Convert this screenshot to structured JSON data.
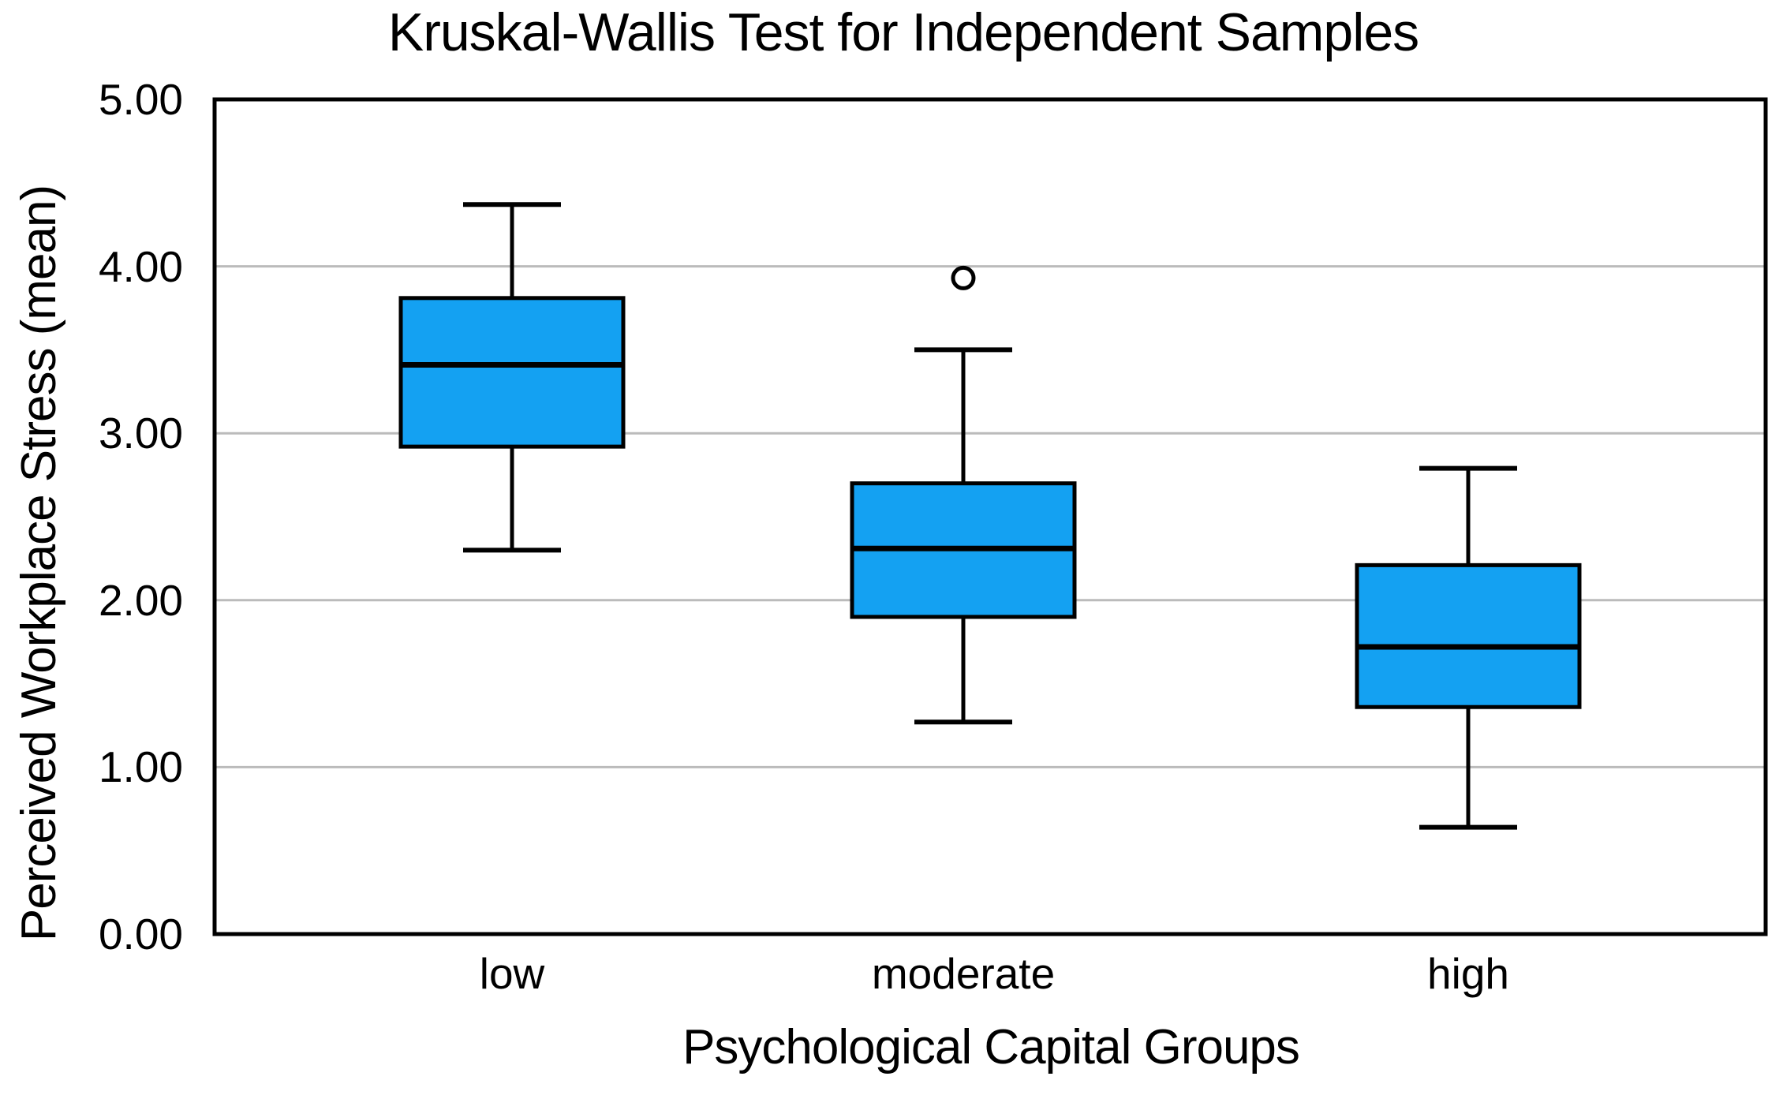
{
  "chart_data": {
    "type": "box",
    "title": "Kruskal-Wallis Test for Independent Samples",
    "xlabel": "Psychological Capital Groups",
    "ylabel": "Perceived Workplace Stress (mean)",
    "ylim": [
      0,
      5
    ],
    "yticks": [
      {
        "value": 0,
        "label": "0.00"
      },
      {
        "value": 1,
        "label": "1.00"
      },
      {
        "value": 2,
        "label": "2.00"
      },
      {
        "value": 3,
        "label": "3.00"
      },
      {
        "value": 4,
        "label": "4.00"
      },
      {
        "value": 5,
        "label": "5.00"
      }
    ],
    "grid": "horizontal",
    "legend_position": "none",
    "groups": [
      {
        "label": "low",
        "whisker_low": 2.3,
        "q1": 2.92,
        "median": 3.41,
        "q3": 3.81,
        "whisker_high": 4.37,
        "outliers": []
      },
      {
        "label": "moderate",
        "whisker_low": 1.27,
        "q1": 1.9,
        "median": 2.31,
        "q3": 2.7,
        "whisker_high": 3.5,
        "outliers": [
          3.93
        ]
      },
      {
        "label": "high",
        "whisker_low": 0.64,
        "q1": 1.36,
        "median": 1.72,
        "q3": 2.21,
        "whisker_high": 2.79,
        "outliers": []
      }
    ],
    "colors": {
      "box_fill": "#14A1F2",
      "box_edge": "#000000",
      "median_line": "#000000",
      "whisker": "#000000",
      "outlier_stroke": "#000000",
      "outlier_fill": "#FFFFFF",
      "gridline": "#BBBBBB",
      "frame": "#000000",
      "text": "#000000",
      "background": "#FFFFFF"
    }
  }
}
